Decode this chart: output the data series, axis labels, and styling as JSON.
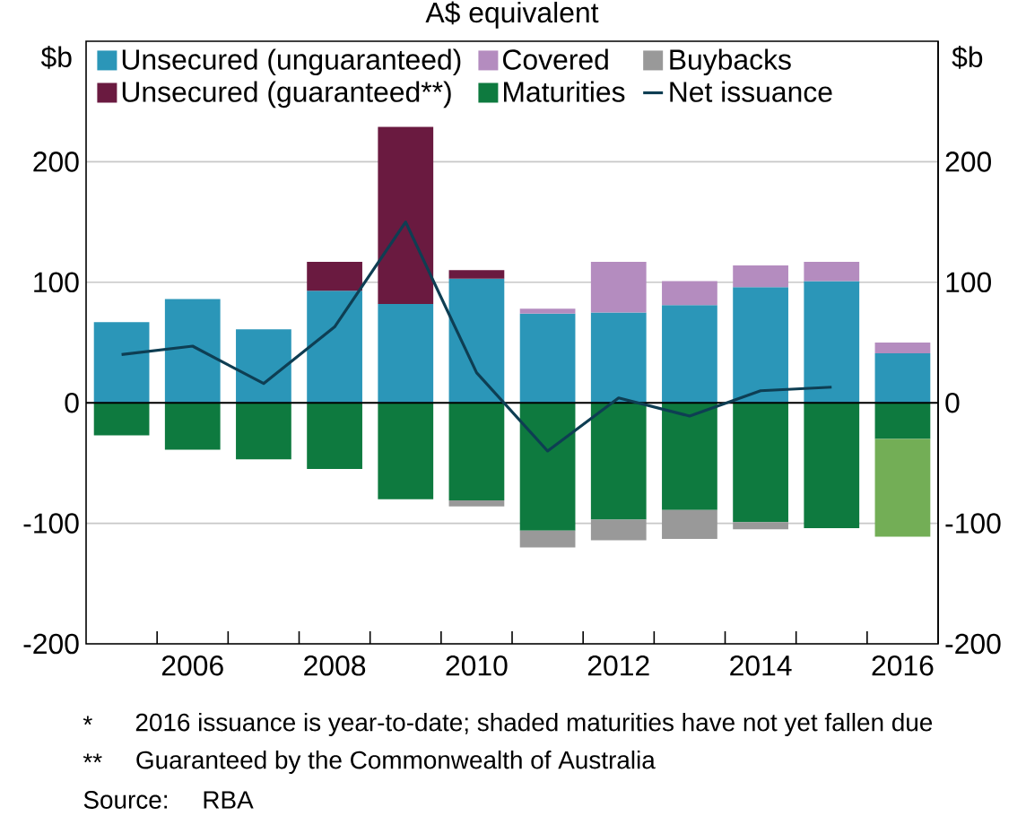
{
  "chart_data": {
    "type": "bar",
    "title": "A$ equivalent",
    "ylabel": "$b",
    "y2label": "$b",
    "categories": [
      null,
      "2006",
      null,
      "2008",
      null,
      "2010",
      null,
      "2012",
      null,
      "2014",
      null,
      "2016"
    ],
    "series": [
      {
        "name": "Unsecured (unguaranteed)",
        "color": "#2b96b8",
        "values": [
          67,
          86,
          61,
          93,
          82,
          103,
          74,
          75,
          81,
          96,
          101,
          41
        ]
      },
      {
        "name": "Unsecured (guaranteed**)",
        "color": "#6a1a40",
        "values": [
          null,
          null,
          null,
          24,
          147,
          7,
          null,
          null,
          null,
          null,
          null,
          null
        ]
      },
      {
        "name": "Covered",
        "color": "#b48cbf",
        "values": [
          null,
          null,
          null,
          null,
          null,
          null,
          4,
          42,
          20,
          18,
          16,
          9
        ]
      },
      {
        "name": "Maturities",
        "color": "#0e7a3f",
        "values": [
          -27,
          -39,
          -47,
          -55,
          -80,
          -81,
          -106,
          -97,
          -89,
          -99,
          -104,
          -30
        ]
      },
      {
        "color": "#73ae56",
        "values": [
          null,
          null,
          null,
          null,
          null,
          null,
          null,
          null,
          null,
          null,
          null,
          -81
        ]
      },
      {
        "name": "Buybacks",
        "color": "#999999",
        "values": [
          null,
          null,
          null,
          null,
          null,
          -5,
          -14,
          -17,
          -24,
          -6,
          null,
          null
        ]
      },
      {
        "name": "Net issuance",
        "type": "line",
        "color": "#0e3e53",
        "values": [
          40,
          47,
          16,
          63,
          150,
          25,
          -40,
          4,
          -11,
          10,
          13,
          null
        ]
      }
    ],
    "stacked": true,
    "ylim": [
      -200,
      300
    ],
    "yticks": [
      -200,
      -100,
      0,
      100,
      200
    ],
    "y2lim": [
      -200,
      300
    ],
    "y2ticks": [
      -200,
      -100,
      0,
      100,
      200
    ],
    "grid": "y",
    "legend": "top left",
    "ref_lines": [
      {
        "axis": "y",
        "value": 0,
        "color": "#000000"
      }
    ],
    "annotations": [
      "*",
      "2016 issuance is year-to-date; shaded maturities have not yet fallen due",
      "**",
      "Guaranteed by the Commonwealth of Australia",
      "Source:",
      "RBA"
    ]
  }
}
